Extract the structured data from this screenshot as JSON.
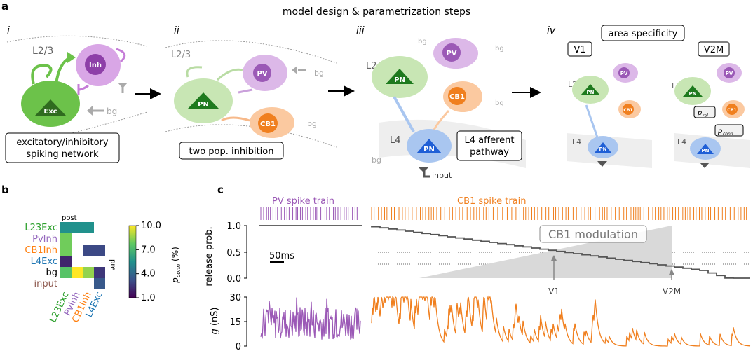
{
  "figure": {
    "title": "model design & parametrization steps",
    "panel_a": "a",
    "panel_b": "b",
    "panel_c": "c"
  },
  "step_i": {
    "numeral": "i",
    "layer": "L2/3",
    "inh": "Inh",
    "exc": "Exc",
    "bg": "bg",
    "caption_line1": "excitatory/inhibitory",
    "caption_line2": "spiking network"
  },
  "step_ii": {
    "numeral": "ii",
    "layer": "L2/3",
    "pv": "PV",
    "pn": "PN",
    "cb1": "CB1",
    "bg1": "bg",
    "bg2": "bg",
    "caption": "two pop. inhibition"
  },
  "step_iii": {
    "numeral": "iii",
    "layer23": "L2/3",
    "layer4": "L4",
    "pv": "PV",
    "pn23": "PN",
    "cb1": "CB1",
    "pn4": "PN",
    "bg": "bg",
    "caption_line1": "L4 afferent",
    "caption_line2": "pathway",
    "input": "input"
  },
  "step_iv": {
    "numeral": "iv",
    "title": "area specificity",
    "v1": "V1",
    "v2m": "V2M",
    "l23": "L2/3",
    "l4": "L4",
    "pv": "PV",
    "pn": "PN",
    "cb1": "CB1",
    "prel": "p",
    "prel_sub": "rel",
    "pconn": "p",
    "pconn_sub": "conn"
  },
  "colors": {
    "exc": "#6cc24a",
    "exc_light": "#c8e6b4",
    "inh": "#b266c7",
    "inh_light": "#dcb8e8",
    "pv": "#9b59b6",
    "cb1": "#f07f1e",
    "cb1_light": "#fbc9a0",
    "l4": "#1f5fd6",
    "l4_light": "#a9c6f0",
    "grey": "#aaaaaa",
    "input": "#8c564b"
  },
  "panel_b": {
    "post_label": "post",
    "pre_label": "pre",
    "rows": [
      "L23Exc",
      "PvInh",
      "CB1Inh",
      "L4Exc",
      "bg",
      "input"
    ],
    "cols": [
      "L23Exc",
      "PvInh",
      "CB1Inh",
      "L4Exc"
    ],
    "row_colors": [
      "#2ca02c",
      "#9467bd",
      "#ff7f0e",
      "#1f77b4",
      "#000000",
      "#8c564b"
    ],
    "col_colors": [
      "#2ca02c",
      "#9467bd",
      "#ff7f0e",
      "#1f77b4"
    ],
    "colorbar_label": "p",
    "colorbar_sub": "conn",
    "colorbar_unit": " (%)",
    "colorbar_ticks": [
      "10.0",
      "7.0",
      "4.0",
      "1.0"
    ]
  },
  "panel_c": {
    "pv_train_label": "PV spike train",
    "cb1_train_label": "CB1 spike train",
    "ylabel_top": "release prob.",
    "yticks_top": [
      "1.0",
      "0.5",
      "0.0"
    ],
    "scalebar": "50ms",
    "modulation": "CB1 modulation",
    "v1": "V1",
    "v2m": "V2M",
    "ylabel_bottom_var": "g",
    "ylabel_bottom_unit": " (nS)",
    "yticks_bottom": [
      "30",
      "15",
      "0"
    ]
  },
  "chart_data": {
    "type": "heatmap",
    "rows": [
      "L23Exc",
      "PvInh",
      "CB1Inh",
      "L4Exc",
      "bg",
      "input"
    ],
    "cols": [
      "L23Exc",
      "PvInh",
      "CB1Inh",
      "L4Exc"
    ],
    "values": [
      [
        5.5,
        5.5,
        5.5,
        null
      ],
      [
        8.0,
        null,
        null,
        null
      ],
      [
        8.0,
        null,
        3.0,
        3.0
      ],
      [
        2.0,
        null,
        null,
        null
      ],
      [
        7.5,
        10.0,
        8.5,
        2.5
      ],
      [
        null,
        null,
        null,
        3.5
      ]
    ],
    "colorbar_range": [
      1.0,
      10.0
    ]
  }
}
